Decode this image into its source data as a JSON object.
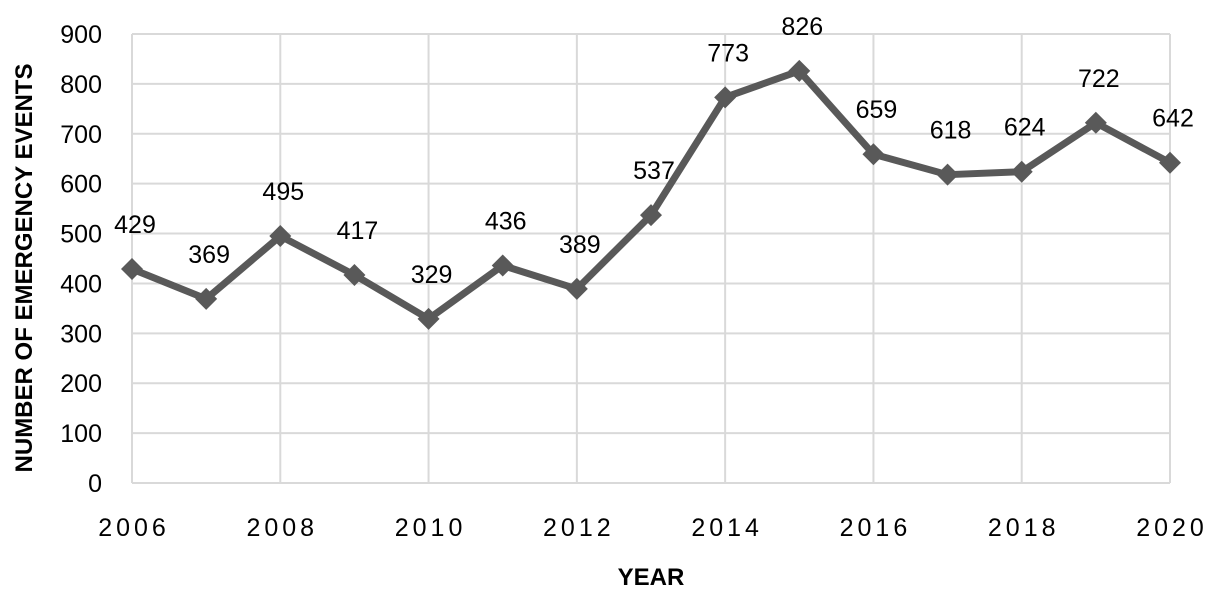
{
  "chart_data": {
    "type": "line",
    "title": "",
    "xlabel": "YEAR",
    "ylabel": "NUMBER OF EMERGENCY EVENTS",
    "x": [
      2006,
      2007,
      2008,
      2009,
      2010,
      2011,
      2012,
      2013,
      2014,
      2015,
      2016,
      2017,
      2018,
      2019,
      2020
    ],
    "series": [
      {
        "values": [
          429,
          369,
          495,
          417,
          329,
          436,
          389,
          537,
          773,
          826,
          659,
          618,
          624,
          722,
          642
        ]
      }
    ],
    "xticks": [
      2006,
      2008,
      2010,
      2012,
      2014,
      2016,
      2018,
      2020
    ],
    "ylim": [
      0,
      900
    ],
    "yticks": [
      0,
      100,
      200,
      300,
      400,
      500,
      600,
      700,
      800,
      900
    ],
    "grid": true,
    "legend": "none",
    "marker": "diamond",
    "line_color": "#595959",
    "grid_color": "#d9d9d9"
  }
}
